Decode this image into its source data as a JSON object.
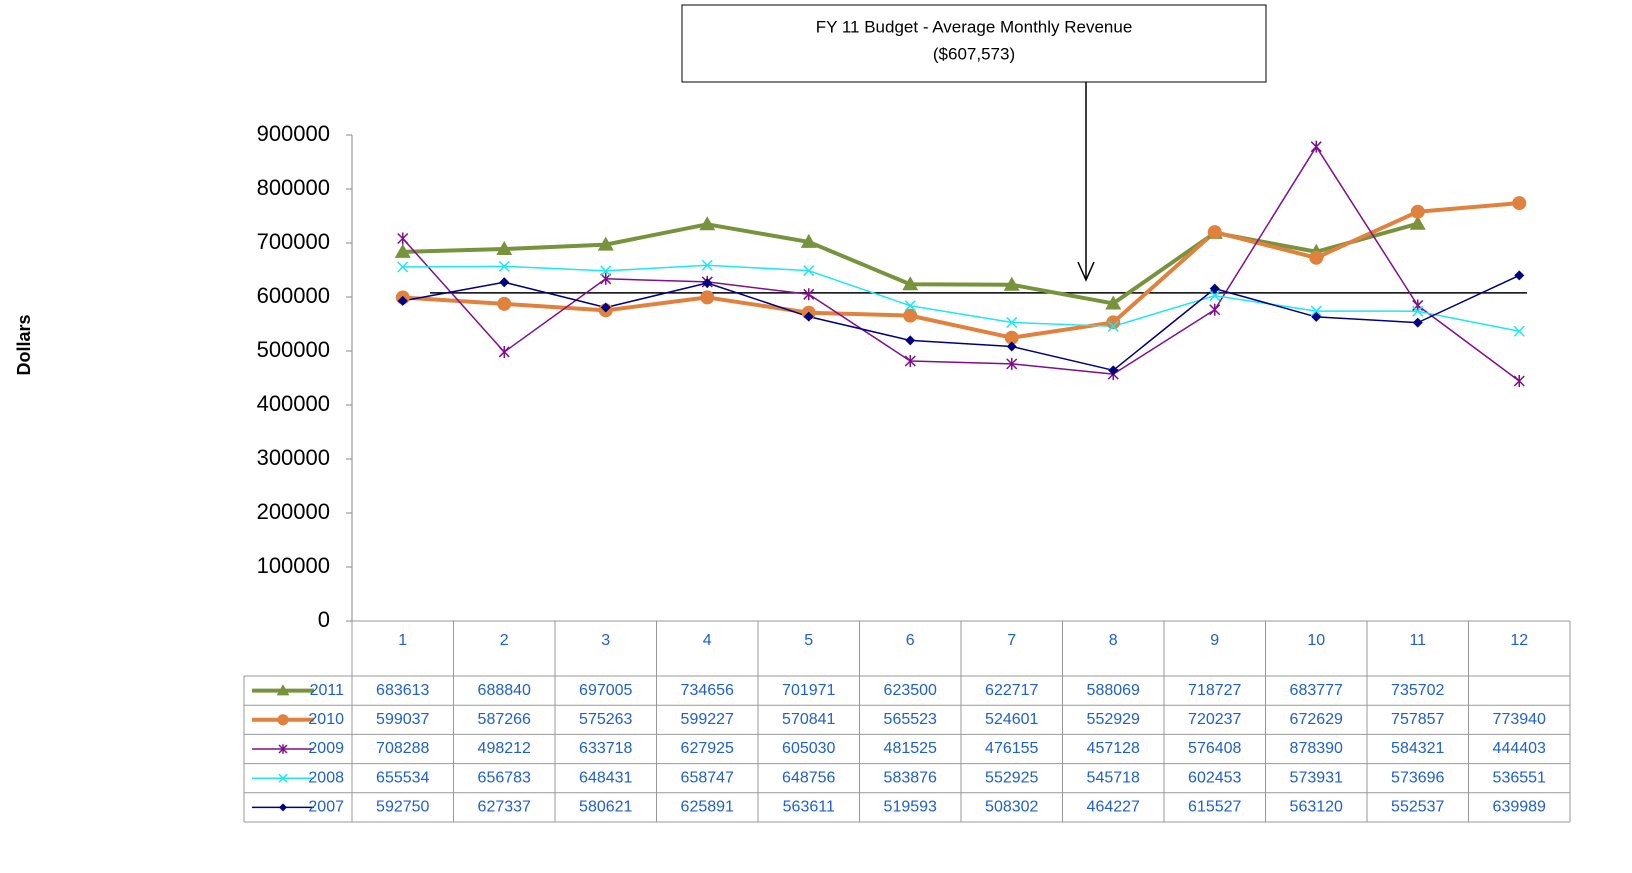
{
  "chart_data": {
    "type": "line",
    "y_label": "Dollars",
    "annotation": [
      "FY 11 Budget - Average Monthly Revenue",
      "($607,573)"
    ],
    "reference_value": 607573,
    "categories": [
      "1",
      "2",
      "3",
      "4",
      "5",
      "6",
      "7",
      "8",
      "9",
      "10",
      "11",
      "12"
    ],
    "ylim": [
      0,
      900000
    ],
    "yticks": [
      0,
      100000,
      200000,
      300000,
      400000,
      500000,
      600000,
      700000,
      800000,
      900000
    ],
    "data_table": true,
    "series": [
      {
        "name": "2011",
        "color": "#77933c",
        "marker": "triangle",
        "width": 4,
        "values": [
          683613,
          688840,
          697005,
          734656,
          701971,
          623500,
          622717,
          588069,
          718727,
          683777,
          735702,
          null
        ]
      },
      {
        "name": "2010",
        "color": "#e0823d",
        "marker": "circle",
        "width": 4,
        "values": [
          599037,
          587266,
          575263,
          599227,
          570841,
          565523,
          524601,
          552929,
          720237,
          672629,
          757857,
          773940
        ]
      },
      {
        "name": "2009",
        "color": "#800f8c",
        "marker": "star",
        "width": 1.5,
        "values": [
          708288,
          498212,
          633718,
          627925,
          605030,
          481525,
          476155,
          457128,
          576408,
          878390,
          584321,
          444403
        ]
      },
      {
        "name": "2008",
        "color": "#1de7f5",
        "marker": "x",
        "width": 1.5,
        "values": [
          655534,
          656783,
          648431,
          658747,
          648756,
          583876,
          552925,
          545718,
          602453,
          573931,
          573696,
          536551
        ]
      },
      {
        "name": "2007",
        "color": "#000080",
        "marker": "diamond",
        "width": 1.5,
        "values": [
          592750,
          627337,
          580621,
          625891,
          563611,
          519593,
          508302,
          464227,
          615527,
          563120,
          552537,
          639989
        ]
      }
    ]
  }
}
